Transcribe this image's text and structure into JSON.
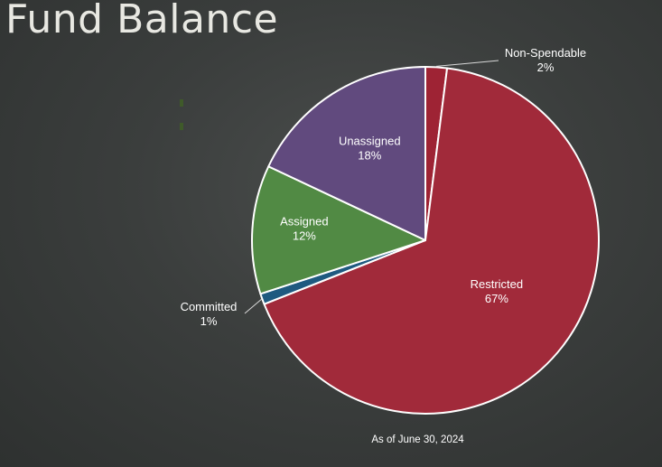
{
  "slide": {
    "title": "Fund Balance",
    "footnote": "As of June 30, 2024"
  },
  "chart_data": {
    "type": "pie",
    "categories": [
      "Non-Spendable",
      "Restricted",
      "Committed",
      "Assigned",
      "Unassigned"
    ],
    "values": [
      2,
      67,
      1,
      12,
      18
    ],
    "labels": [
      "2%",
      "67%",
      "1%",
      "12%",
      "18%"
    ],
    "colors": [
      "#9e2334",
      "#a12a3a",
      "#1f5a80",
      "#518a44",
      "#614a7e"
    ],
    "start": "12 o'clock",
    "direction": "clockwise",
    "legend": "none",
    "title": "",
    "note": "As of June 30, 2024"
  }
}
